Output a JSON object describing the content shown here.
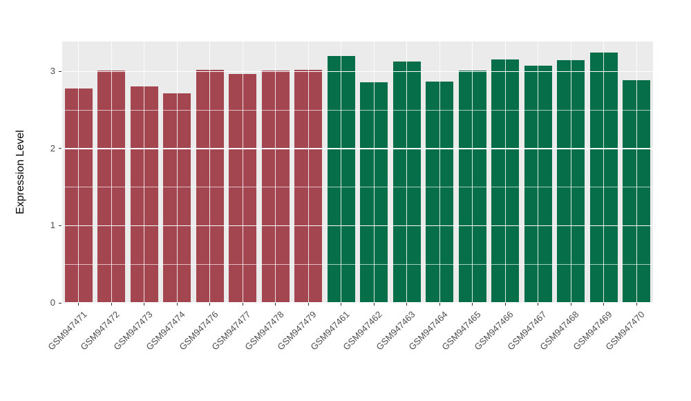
{
  "chart_data": {
    "type": "bar",
    "title": "",
    "xlabel": "",
    "ylabel": "Expression Level",
    "ylim": [
      0,
      3.39
    ],
    "yticks": [
      0,
      1,
      2,
      3
    ],
    "minor_tick_step": 0.5,
    "grid": true,
    "legend": false,
    "panel_background": "#EBEBEB",
    "gridline_color": "#FFFFFF",
    "bar_width_fraction": 0.85,
    "categories": [
      "GSM947471",
      "GSM947472",
      "GSM947473",
      "GSM947474",
      "GSM947476",
      "GSM947477",
      "GSM947478",
      "GSM947479",
      "GSM947461",
      "GSM947462",
      "GSM947463",
      "GSM947464",
      "GSM947465",
      "GSM947466",
      "GSM947467",
      "GSM947468",
      "GSM947469",
      "GSM947470"
    ],
    "values": [
      2.78,
      3.01,
      2.81,
      2.72,
      3.02,
      2.97,
      3.01,
      3.02,
      3.2,
      2.86,
      3.13,
      2.87,
      3.01,
      3.16,
      3.08,
      3.15,
      3.25,
      2.89
    ],
    "bar_groups": [
      "maroon",
      "maroon",
      "maroon",
      "maroon",
      "maroon",
      "maroon",
      "maroon",
      "maroon",
      "green",
      "green",
      "green",
      "green",
      "green",
      "green",
      "green",
      "green",
      "green",
      "green"
    ],
    "colors": {
      "maroon": "#A4464F",
      "green": "#066E49"
    }
  }
}
